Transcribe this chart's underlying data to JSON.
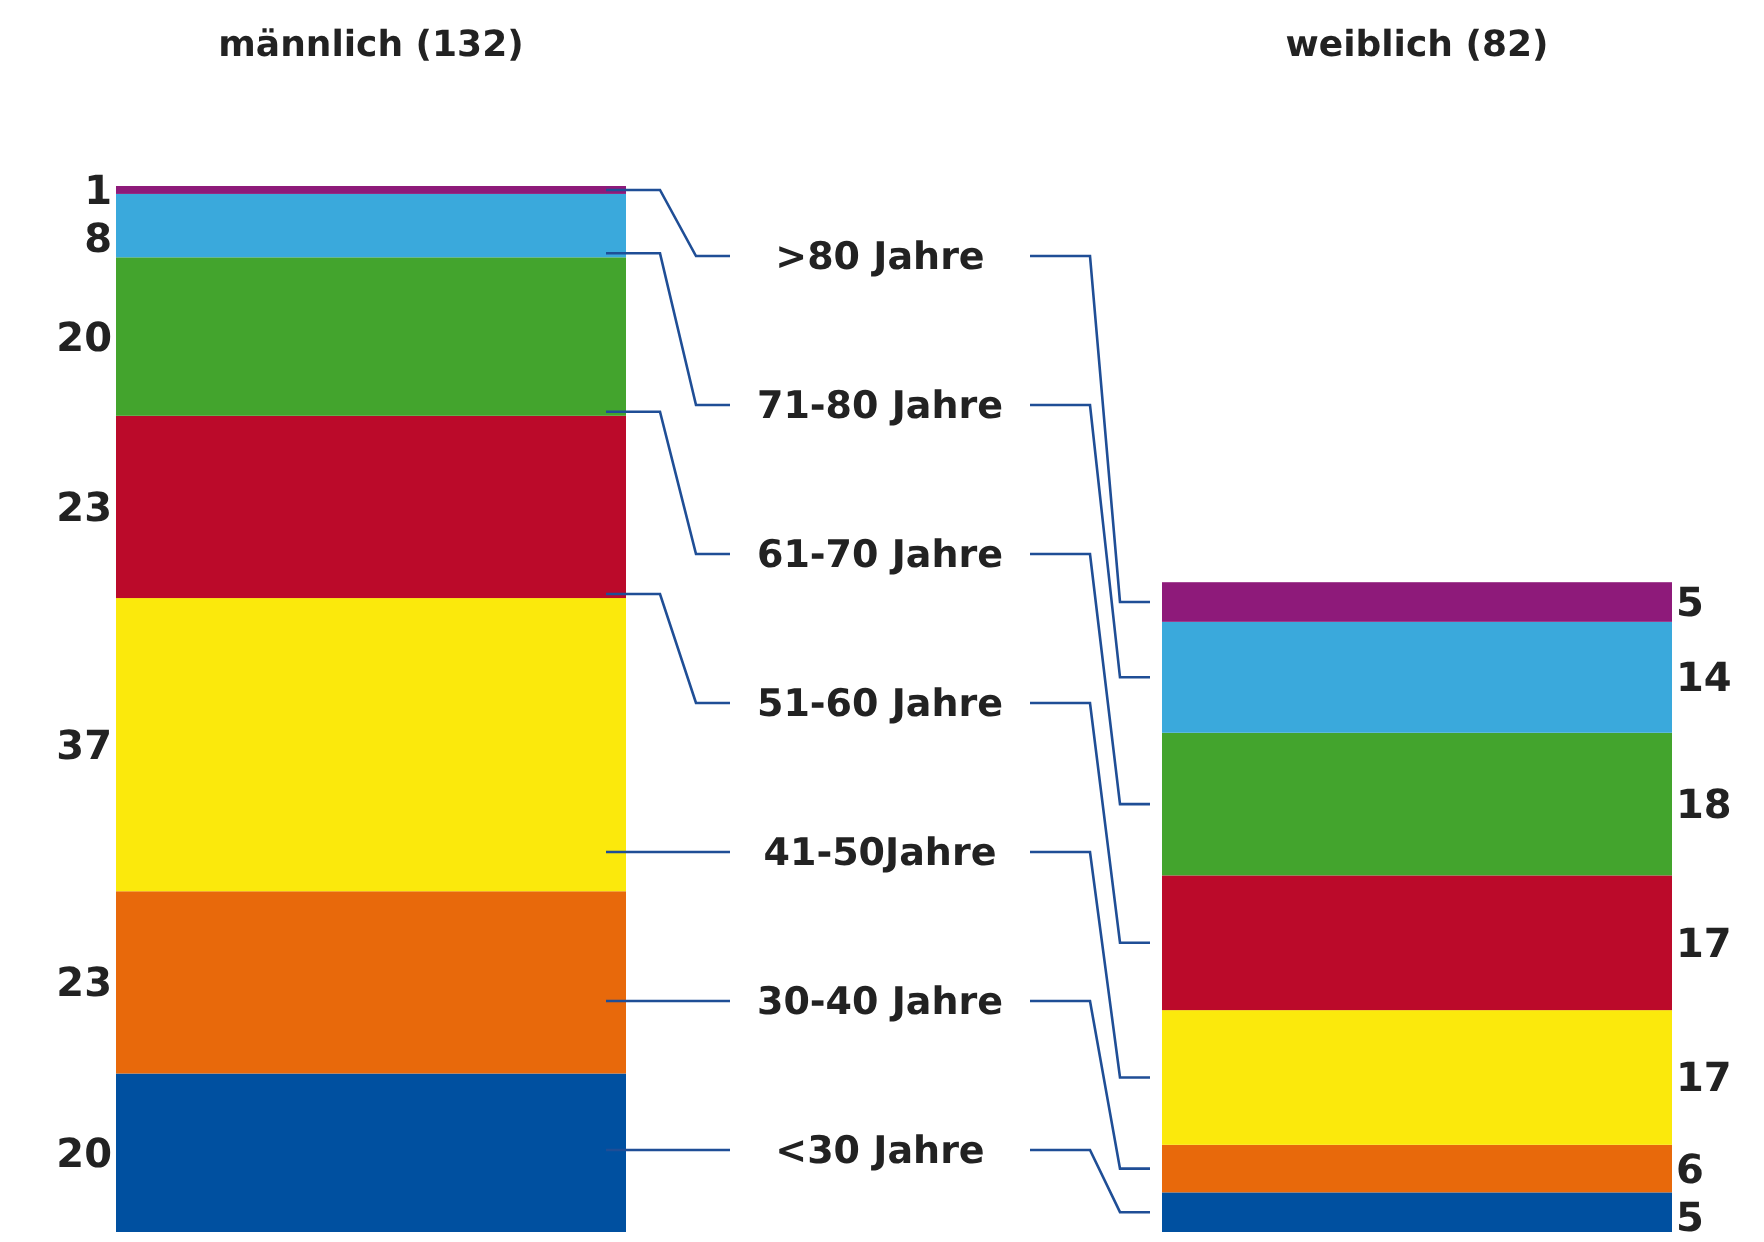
{
  "chart_data": {
    "type": "bar",
    "stacked": true,
    "data_labels": true,
    "categories": [
      "männlich (132)",
      "weiblich (82)"
    ],
    "series": [
      {
        "name": "<30 Jahre",
        "color": "#0050a0",
        "values": [
          20,
          5
        ]
      },
      {
        "name": "30-40 Jahre",
        "color": "#e8690b",
        "values": [
          23,
          6
        ]
      },
      {
        "name": "41-50Jahre",
        "color": "#fbe90c",
        "values": [
          37,
          17
        ]
      },
      {
        "name": "51-60 Jahre",
        "color": "#bb0a2a",
        "values": [
          23,
          17
        ]
      },
      {
        "name": "61-70 Jahre",
        "color": "#43a42d",
        "values": [
          20,
          18
        ]
      },
      {
        "name": "71-80 Jahre",
        "color": "#3aa9dc",
        "values": [
          8,
          14
        ]
      },
      {
        "name": ">80 Jahre",
        "color": "#8e1a7a",
        "values": [
          1,
          5
        ]
      }
    ]
  }
}
